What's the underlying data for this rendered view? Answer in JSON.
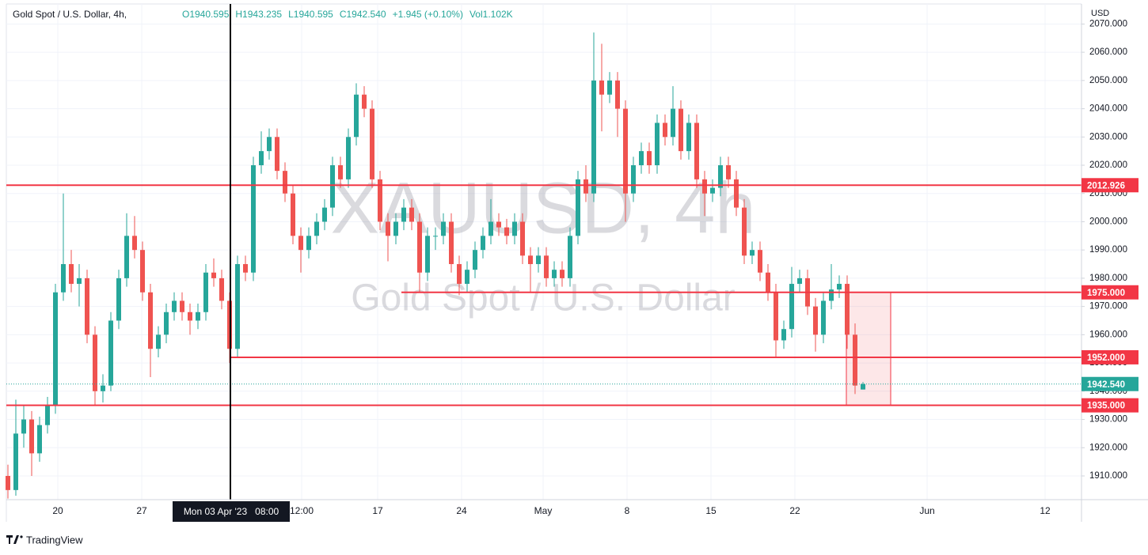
{
  "chart_data": {
    "type": "candlestick",
    "header": {
      "symbol": "Gold Spot / U.S. Dollar, 4h,",
      "ohlc": [
        "O1940.595",
        "H1943.235",
        "L1940.595",
        "C1942.540",
        "+1.945 (+0.10%)",
        "Vol1.102K"
      ]
    },
    "watermark": {
      "title": "XAUUSD, 4h",
      "subtitle": "Gold Spot / U.S. Dollar"
    },
    "currency": "USD",
    "brand": "TradingView",
    "up_color": "#26a69a",
    "down_color": "#ef5350",
    "grid": true,
    "candles": [
      [
        1910,
        1914,
        1902,
        1905
      ],
      [
        1905,
        1937,
        1903,
        1925
      ],
      [
        1925,
        1935,
        1920,
        1930
      ],
      [
        1930,
        1933,
        1910,
        1918
      ],
      [
        1918,
        1931,
        1915,
        1928
      ],
      [
        1928,
        1938,
        1925,
        1935
      ],
      [
        1935,
        1978,
        1932,
        1975
      ],
      [
        1975,
        2010,
        1972,
        1985
      ],
      [
        1985,
        1990,
        1975,
        1978
      ],
      [
        1978,
        1985,
        1970,
        1980
      ],
      [
        1980,
        1983,
        1957,
        1960
      ],
      [
        1960,
        1963,
        1935,
        1940
      ],
      [
        1940,
        1946,
        1936,
        1942
      ],
      [
        1942,
        1968,
        1940,
        1965
      ],
      [
        1965,
        1983,
        1962,
        1980
      ],
      [
        1980,
        2003,
        1977,
        1995
      ],
      [
        1995,
        2002,
        1987,
        1990
      ],
      [
        1990,
        1993,
        1972,
        1975
      ],
      [
        1975,
        1978,
        1945,
        1955
      ],
      [
        1955,
        1963,
        1952,
        1960
      ],
      [
        1960,
        1971,
        1957,
        1968
      ],
      [
        1968,
        1975,
        1965,
        1972
      ],
      [
        1972,
        1975,
        1965,
        1968
      ],
      [
        1968,
        1971,
        1960,
        1965
      ],
      [
        1965,
        1971,
        1962,
        1968
      ],
      [
        1968,
        1985,
        1965,
        1982
      ],
      [
        1982,
        1987,
        1977,
        1980
      ],
      [
        1980,
        1983,
        1969,
        1972
      ],
      [
        1972,
        1975,
        1950,
        1955
      ],
      [
        1955,
        1988,
        1952,
        1985
      ],
      [
        1985,
        1988,
        1979,
        1982
      ],
      [
        1982,
        2023,
        1979,
        2020
      ],
      [
        2020,
        2032,
        2017,
        2025
      ],
      [
        2025,
        2033,
        2022,
        2030
      ],
      [
        2030,
        2033,
        2015,
        2018
      ],
      [
        2018,
        2021,
        2007,
        2010
      ],
      [
        2010,
        2013,
        1992,
        1995
      ],
      [
        1995,
        1998,
        1982,
        1990
      ],
      [
        1990,
        1998,
        1987,
        1995
      ],
      [
        1995,
        2003,
        1992,
        2000
      ],
      [
        2000,
        2008,
        1997,
        2005
      ],
      [
        2005,
        2023,
        2002,
        2020
      ],
      [
        2020,
        2023,
        2012,
        2015
      ],
      [
        2015,
        2033,
        2012,
        2030
      ],
      [
        2030,
        2049,
        2027,
        2045
      ],
      [
        2045,
        2048,
        2037,
        2040
      ],
      [
        2040,
        2043,
        2012,
        2015
      ],
      [
        2015,
        2018,
        1997,
        2000
      ],
      [
        2000,
        2003,
        1986,
        1995
      ],
      [
        1995,
        2003,
        1992,
        2000
      ],
      [
        2000,
        2008,
        1997,
        2005
      ],
      [
        2005,
        2008,
        1997,
        2000
      ],
      [
        2000,
        2003,
        1975,
        1982
      ],
      [
        1982,
        1998,
        1979,
        1995
      ],
      [
        1995,
        1998,
        1990,
        1995
      ],
      [
        1995,
        2003,
        1992,
        2000
      ],
      [
        2000,
        2003,
        1982,
        1985
      ],
      [
        1985,
        1988,
        1974,
        1978
      ],
      [
        1978,
        1986,
        1975,
        1983
      ],
      [
        1983,
        1993,
        1980,
        1990
      ],
      [
        1990,
        1998,
        1987,
        1995
      ],
      [
        1995,
        2008,
        1992,
        2000
      ],
      [
        2000,
        2003,
        1995,
        1998
      ],
      [
        1998,
        2001,
        1992,
        1995
      ],
      [
        1995,
        2003,
        1992,
        2000
      ],
      [
        2000,
        2003,
        1985,
        1988
      ],
      [
        1988,
        1991,
        1975,
        1985
      ],
      [
        1985,
        1991,
        1982,
        1988
      ],
      [
        1988,
        1991,
        1977,
        1980
      ],
      [
        1980,
        1986,
        1977,
        1983
      ],
      [
        1983,
        1986,
        1977,
        1980
      ],
      [
        1980,
        1998,
        1977,
        1995
      ],
      [
        1995,
        2018,
        1992,
        2015
      ],
      [
        2015,
        2020,
        2007,
        2010
      ],
      [
        2010,
        2067,
        2007,
        2050
      ],
      [
        2050,
        2063,
        2032,
        2045
      ],
      [
        2045,
        2053,
        2042,
        2050
      ],
      [
        2050,
        2053,
        2030,
        2040
      ],
      [
        2040,
        2043,
        2000,
        2010
      ],
      [
        2010,
        2023,
        2007,
        2020
      ],
      [
        2020,
        2028,
        2017,
        2025
      ],
      [
        2025,
        2028,
        2017,
        2020
      ],
      [
        2020,
        2038,
        2017,
        2035
      ],
      [
        2035,
        2038,
        2027,
        2030
      ],
      [
        2030,
        2048,
        2027,
        2040
      ],
      [
        2040,
        2043,
        2022,
        2025
      ],
      [
        2025,
        2038,
        2022,
        2035
      ],
      [
        2035,
        2038,
        2012,
        2015
      ],
      [
        2015,
        2018,
        2002,
        2010
      ],
      [
        2010,
        2015,
        2007,
        2012
      ],
      [
        2012,
        2023,
        2009,
        2020
      ],
      [
        2020,
        2023,
        2012,
        2015
      ],
      [
        2015,
        2018,
        2002,
        2005
      ],
      [
        2005,
        2008,
        1985,
        1988
      ],
      [
        1988,
        1993,
        1985,
        1990
      ],
      [
        1990,
        1993,
        1979,
        1982
      ],
      [
        1982,
        1985,
        1972,
        1975
      ],
      [
        1975,
        1978,
        1952,
        1958
      ],
      [
        1958,
        1965,
        1955,
        1962
      ],
      [
        1962,
        1984,
        1959,
        1978
      ],
      [
        1978,
        1983,
        1975,
        1980
      ],
      [
        1980,
        1983,
        1967,
        1970
      ],
      [
        1970,
        1973,
        1954,
        1960
      ],
      [
        1960,
        1975,
        1957,
        1972
      ],
      [
        1972,
        1985,
        1969,
        1976
      ],
      [
        1976,
        1981,
        1973,
        1978
      ],
      [
        1978,
        1981,
        1955,
        1960
      ],
      [
        1960,
        1964,
        1939,
        1942
      ],
      [
        1940.595,
        1943.235,
        1940.595,
        1942.54
      ]
    ],
    "xlim": [
      -0.2,
      135.6
    ],
    "xticks": [
      {
        "value": 6.3,
        "label": "20"
      },
      {
        "value": 16.9,
        "label": "27"
      },
      {
        "value": 37.1,
        "label": "12:00"
      },
      {
        "value": 46.7,
        "label": "17"
      },
      {
        "value": 57.3,
        "label": "24"
      },
      {
        "value": 67.6,
        "label": "May"
      },
      {
        "value": 78.2,
        "label": "8"
      },
      {
        "value": 88.8,
        "label": "15"
      },
      {
        "value": 99.4,
        "label": "22"
      },
      {
        "value": 116.1,
        "label": "Jun"
      },
      {
        "value": 131.0,
        "label": "12"
      }
    ],
    "ylim": [
      1901.6,
      2077.1
    ],
    "yticks": [
      {
        "value": 1910,
        "label": "1910.000"
      },
      {
        "value": 1920,
        "label": "1920.000"
      },
      {
        "value": 1930,
        "label": "1930.000"
      },
      {
        "value": 1940,
        "label": "1940.000"
      },
      {
        "value": 1950,
        "label": "1950.000"
      },
      {
        "value": 1960,
        "label": "1960.000"
      },
      {
        "value": 1970,
        "label": "1970.000"
      },
      {
        "value": 1980,
        "label": "1980.000"
      },
      {
        "value": 1990,
        "label": "1990.000"
      },
      {
        "value": 2000,
        "label": "2000.000"
      },
      {
        "value": 2010,
        "label": "2010.000"
      },
      {
        "value": 2020,
        "label": "2020.000"
      },
      {
        "value": 2030,
        "label": "2030.000"
      },
      {
        "value": 2040,
        "label": "2040.000"
      },
      {
        "value": 2050,
        "label": "2050.000"
      },
      {
        "value": 2060,
        "label": "2060.000"
      },
      {
        "value": 2070,
        "label": "2070.000"
      }
    ],
    "levels": [
      {
        "value": 2012.926,
        "label": "2012.926",
        "color": "#f23645",
        "start": -0.2
      },
      {
        "value": 1975,
        "label": "1975.000",
        "color": "#f23645",
        "start": 49.7
      },
      {
        "value": 1952,
        "label": "1952.000",
        "color": "#f23645",
        "start": 28.1
      },
      {
        "value": 1935,
        "label": "1935.000",
        "color": "#f23645",
        "start": -0.2
      }
    ],
    "last_price": {
      "value": 1942.54,
      "label": "1942.540",
      "color": "#26a69a"
    },
    "zone": {
      "x": [
        105.9,
        111.5
      ],
      "y": [
        1935,
        1975
      ],
      "color": "#f23645"
    },
    "crosshair": {
      "x": 28.1,
      "label": "Mon 03 Apr '23   08:00"
    }
  }
}
